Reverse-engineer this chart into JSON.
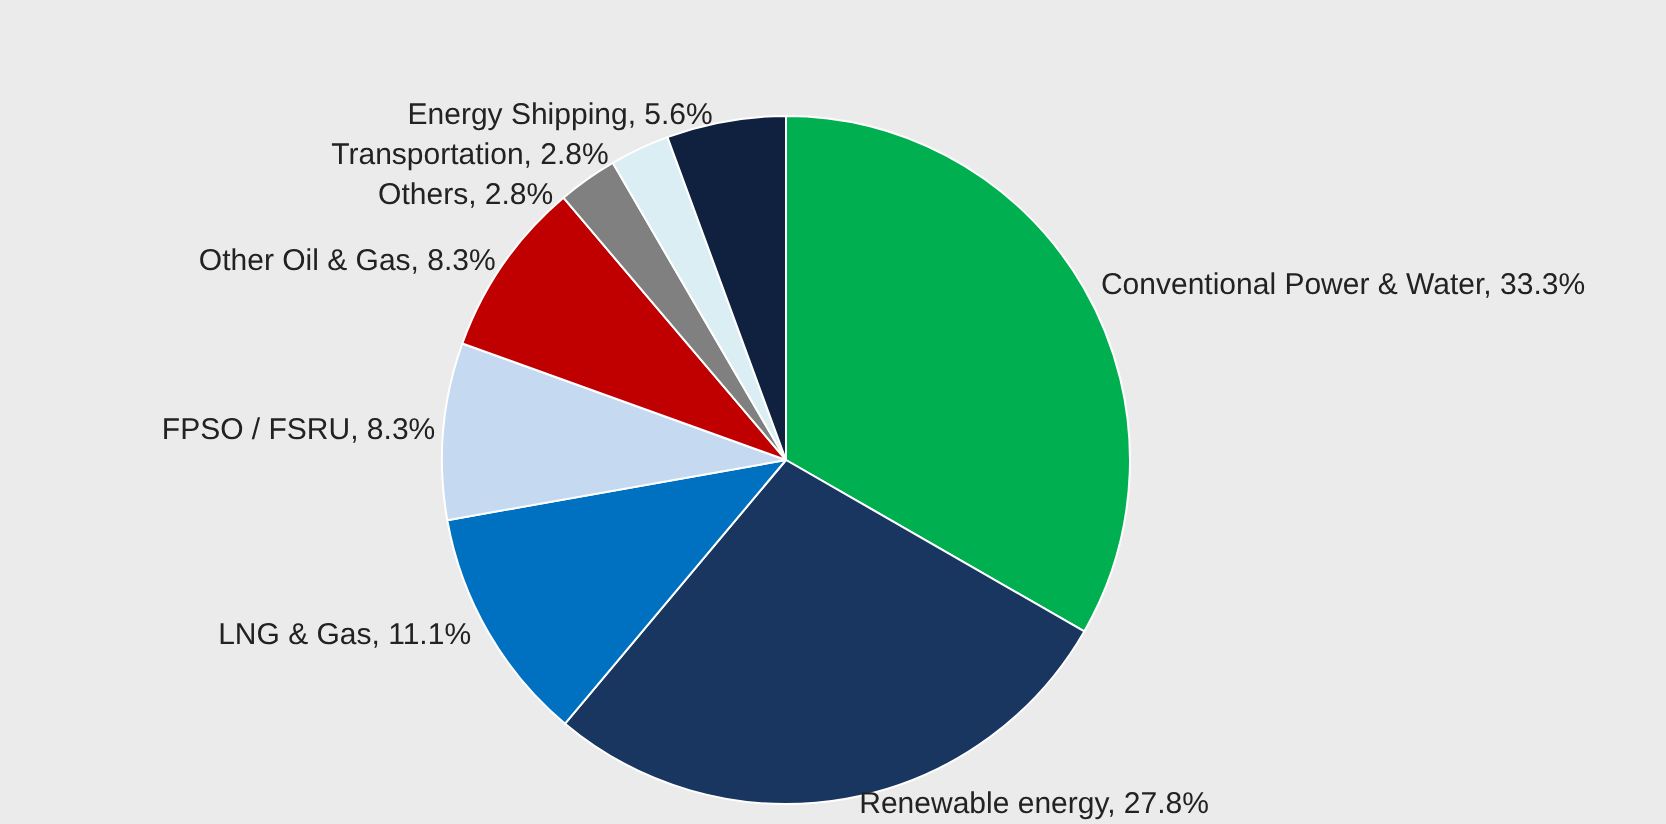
{
  "chart_data": {
    "type": "pie",
    "categories": [
      "Conventional Power & Water",
      "Renewable energy",
      "LNG & Gas",
      "FPSO / FSRU",
      "Other Oil & Gas",
      "Others",
      "Transportation",
      "Energy Shipping"
    ],
    "values": [
      33.3,
      27.8,
      11.1,
      8.3,
      8.3,
      2.8,
      2.8,
      5.6
    ],
    "value_labels": [
      "33.3%",
      "27.8%",
      "11.1%",
      "8.3%",
      "8.3%",
      "2.8%",
      "2.8%",
      "5.6%"
    ],
    "colors": [
      "#00b050",
      "#193660",
      "#0070c0",
      "#c5d9f1",
      "#c00000",
      "#808080",
      "#dbeef4",
      "#10213f"
    ],
    "legend": false
  }
}
